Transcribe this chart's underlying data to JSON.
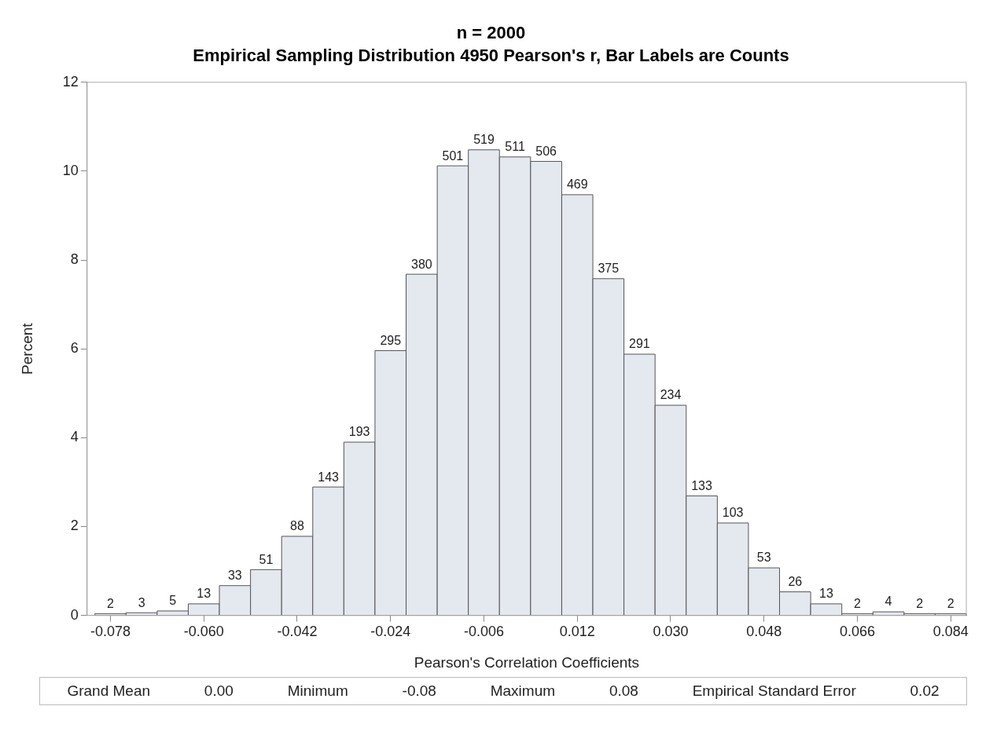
{
  "chart_data": {
    "type": "histogram",
    "title": "n = 2000",
    "subtitle": "Empirical Sampling Distribution 4950 Pearson's r, Bar Labels are Counts",
    "xlabel": "Pearson's Correlation Coefficients",
    "ylabel": "Percent",
    "bins": [
      -0.081,
      -0.075,
      -0.069,
      -0.063,
      -0.057,
      -0.051,
      -0.045,
      -0.039,
      -0.033,
      -0.027,
      -0.021,
      -0.015,
      -0.009,
      -0.003,
      0.003,
      0.009,
      0.015,
      0.021,
      0.027,
      0.033,
      0.039,
      0.045,
      0.051,
      0.057,
      0.063,
      0.069,
      0.075,
      0.081,
      0.087
    ],
    "values": [
      0.04,
      0.06,
      0.1,
      0.26,
      0.67,
      1.03,
      1.78,
      2.89,
      3.9,
      5.96,
      7.68,
      10.12,
      10.48,
      10.32,
      10.22,
      9.47,
      7.58,
      5.88,
      4.73,
      2.69,
      2.08,
      1.07,
      0.53,
      0.26,
      0.04,
      0.08,
      0.04,
      0.04
    ],
    "color": "#e4e8ef",
    "xlim": [
      -0.0825,
      0.087
    ],
    "xticks": [
      {
        "value": -0.078,
        "label": "-0.078"
      },
      {
        "value": -0.06,
        "label": "-0.060"
      },
      {
        "value": -0.042,
        "label": "-0.042"
      },
      {
        "value": -0.024,
        "label": "-0.024"
      },
      {
        "value": -0.006,
        "label": "-0.006"
      },
      {
        "value": 0.012,
        "label": "0.012"
      },
      {
        "value": 0.03,
        "label": "0.030"
      },
      {
        "value": 0.048,
        "label": "0.048"
      },
      {
        "value": 0.066,
        "label": "0.066"
      },
      {
        "value": 0.084,
        "label": "0.084"
      }
    ],
    "ylim": [
      0,
      12
    ],
    "yticks": [
      0,
      2,
      4,
      6,
      8,
      10,
      12
    ],
    "annotations": [
      {
        "text": "2",
        "x": -0.078,
        "y": 0.04
      },
      {
        "text": "3",
        "x": -0.072,
        "y": 0.06
      },
      {
        "text": "5",
        "x": -0.066,
        "y": 0.1
      },
      {
        "text": "13",
        "x": -0.06,
        "y": 0.26
      },
      {
        "text": "33",
        "x": -0.054,
        "y": 0.67
      },
      {
        "text": "51",
        "x": -0.048,
        "y": 1.03
      },
      {
        "text": "88",
        "x": -0.042,
        "y": 1.78
      },
      {
        "text": "143",
        "x": -0.036,
        "y": 2.89
      },
      {
        "text": "193",
        "x": -0.03,
        "y": 3.9
      },
      {
        "text": "295",
        "x": -0.024,
        "y": 5.96
      },
      {
        "text": "380",
        "x": -0.018,
        "y": 7.68
      },
      {
        "text": "501",
        "x": -0.012,
        "y": 10.12
      },
      {
        "text": "519",
        "x": -0.006,
        "y": 10.48
      },
      {
        "text": "511",
        "x": 0.0,
        "y": 10.32
      },
      {
        "text": "506",
        "x": 0.006,
        "y": 10.22
      },
      {
        "text": "469",
        "x": 0.012,
        "y": 9.47
      },
      {
        "text": "375",
        "x": 0.018,
        "y": 7.58
      },
      {
        "text": "291",
        "x": 0.024,
        "y": 5.88
      },
      {
        "text": "234",
        "x": 0.03,
        "y": 4.73
      },
      {
        "text": "133",
        "x": 0.036,
        "y": 2.69
      },
      {
        "text": "103",
        "x": 0.042,
        "y": 2.08
      },
      {
        "text": "53",
        "x": 0.048,
        "y": 1.07
      },
      {
        "text": "26",
        "x": 0.054,
        "y": 0.53
      },
      {
        "text": "13",
        "x": 0.06,
        "y": 0.26
      },
      {
        "text": "2",
        "x": 0.066,
        "y": 0.04
      },
      {
        "text": "4",
        "x": 0.072,
        "y": 0.08
      },
      {
        "text": "2",
        "x": 0.078,
        "y": 0.04
      },
      {
        "text": "2",
        "x": 0.084,
        "y": 0.04
      },
      "Grand Mean",
      "0.00",
      "Minimum",
      "-0.08",
      "Maximum",
      "0.08",
      "Empirical Standard Error",
      "0.02"
    ]
  }
}
